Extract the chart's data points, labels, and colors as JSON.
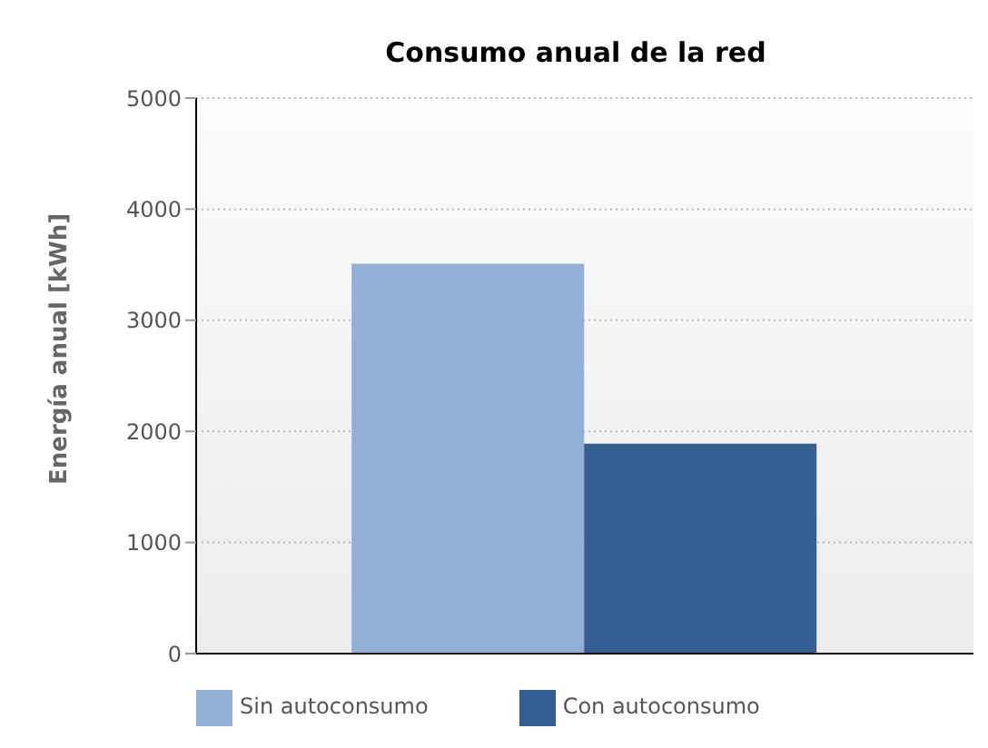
{
  "chart_data": {
    "type": "bar",
    "title": "Consumo anual de la red",
    "ylabel": "Energía anual [kWh]",
    "categories": [
      null
    ],
    "series": [
      {
        "name": "Sin autoconsumo",
        "color": "#92b0d6",
        "values": [
          3510
        ]
      },
      {
        "name": "Con autoconsumo",
        "color": "#355f92",
        "values": [
          1890
        ]
      }
    ],
    "ylim": [
      0,
      5000
    ],
    "yticks": [
      0,
      1000,
      2000,
      3000,
      4000,
      5000
    ],
    "grid": "y",
    "legend": "bottom left"
  }
}
